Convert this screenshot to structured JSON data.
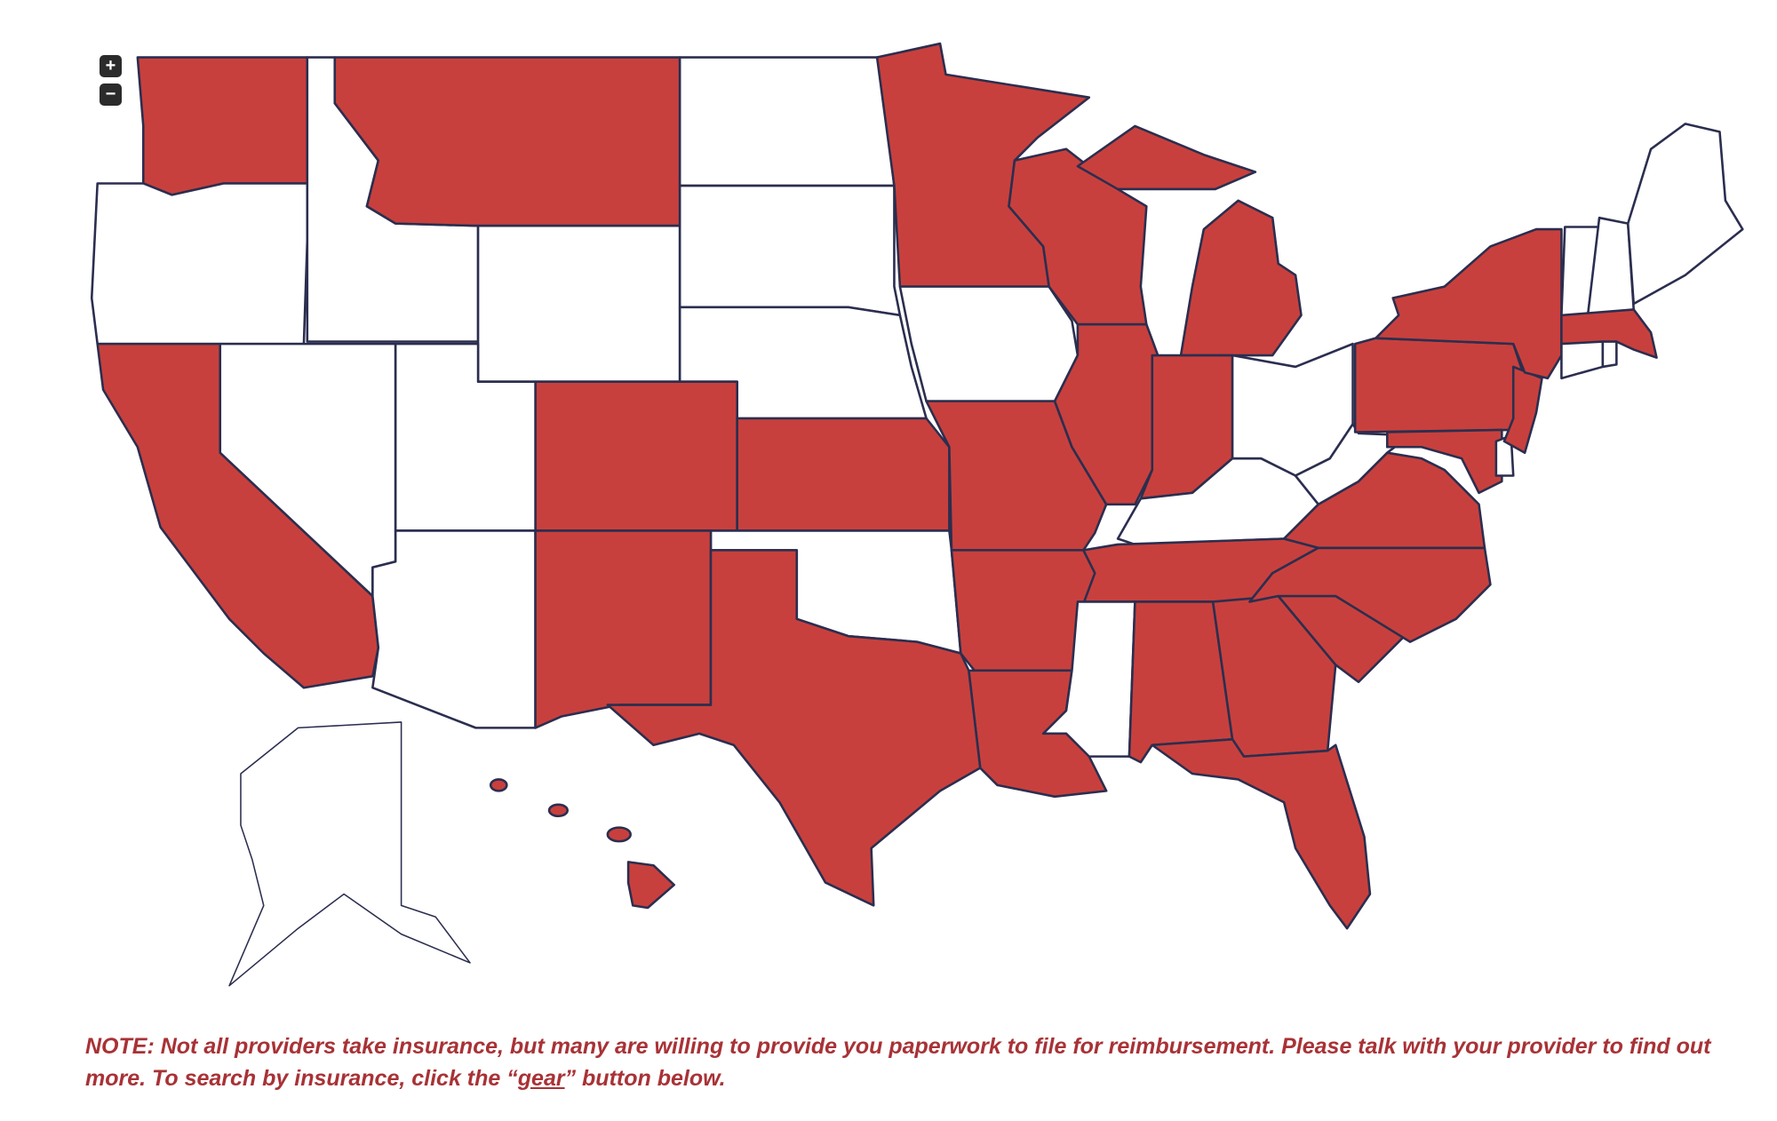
{
  "zoom_controls": {
    "zoom_in": "+",
    "zoom_out": "−"
  },
  "note": {
    "text": "NOTE: Not all providers take insurance, but many are willing to provide you paperwork to file for reimbursement.  Please talk with your provider to find out more. To search by insurance, click the “",
    "link": "gear",
    "after": "” button below."
  }
}
